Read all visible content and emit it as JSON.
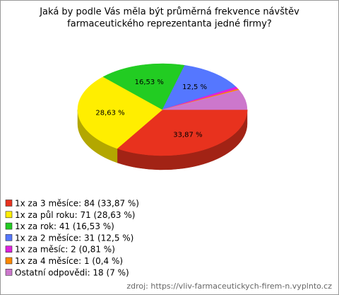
{
  "chart_data": {
    "type": "pie",
    "title": [
      "Jaká by podle Vás měla být průměrná frekvence návštěv",
      "farmaceutického reprezentanta jedné firmy?"
    ],
    "categories": [
      "1x za 3 měsíce: 84 (33,87 %)",
      "1x za půl roku: 71 (28,63 %)",
      "1x za rok: 41 (16,53 %)",
      "1x za 2 měsíce: 31 (12,5 %)",
      "1x za měsíc: 2 (0,81 %)",
      "1x za 4 měsíce: 1 (0,4 %)",
      "Ostatní odpovědi: 18 (7 %)"
    ],
    "values": [
      33.87,
      28.63,
      16.53,
      12.5,
      0.81,
      0.4,
      7
    ],
    "value_labels": [
      "33,87 %",
      "28,63 %",
      "16,53 %",
      "12,5 %",
      null,
      null,
      null
    ],
    "colors": [
      "#e8321e",
      "#ffee00",
      "#22cc22",
      "#5577ff",
      "#dd22dd",
      "#ff8800",
      "#cc77cc"
    ],
    "source": "zdroj: https://vliv-farmaceutickych-firem-n.vyplnto.cz"
  }
}
